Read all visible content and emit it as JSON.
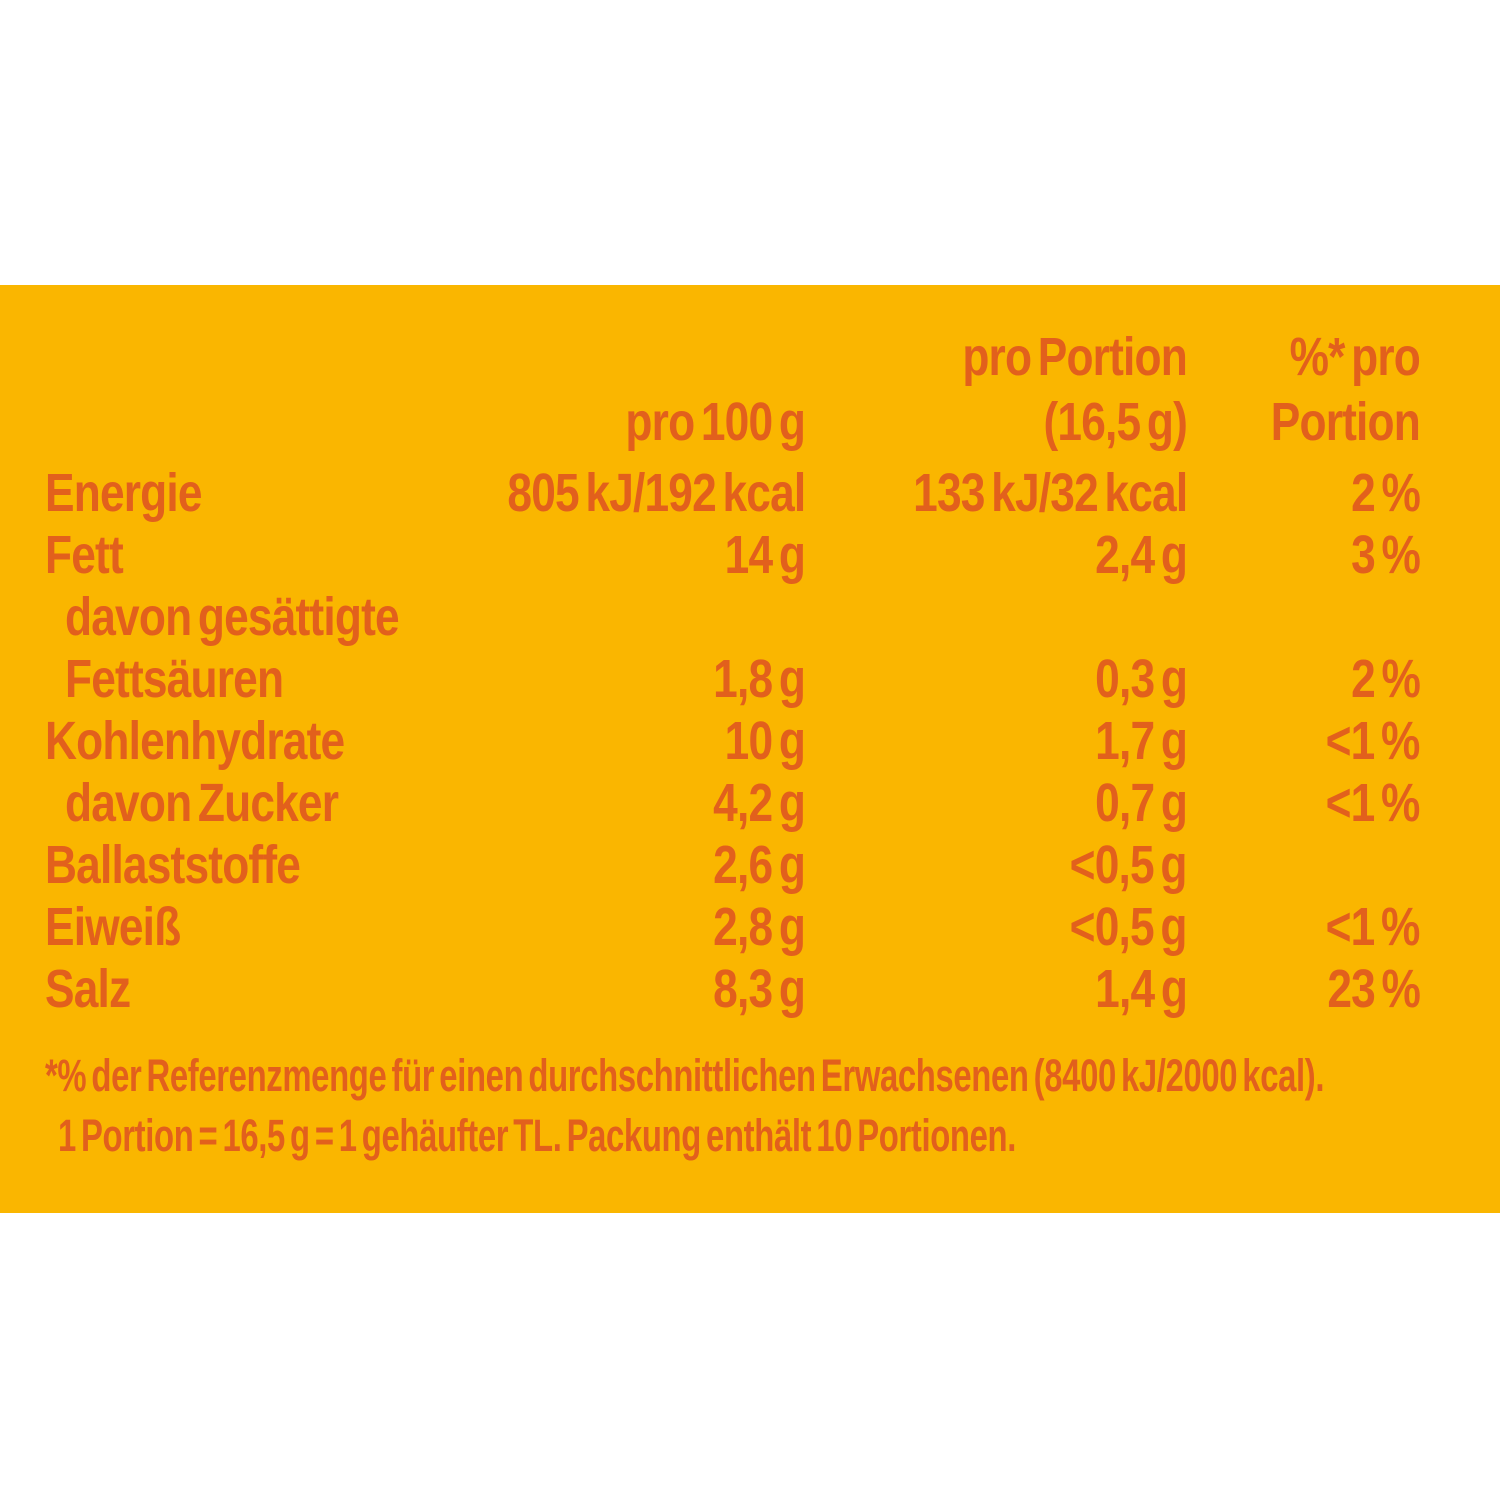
{
  "colors": {
    "page_bg": "#FFFFFF",
    "panel_bg": "#FAB600",
    "text": "#E2601C"
  },
  "table": {
    "header": {
      "col3_line1": "pro Portion",
      "col4_line1": "%* pro",
      "col2_line2": "pro 100 g",
      "col3_line2": "(16,5 g)",
      "col4_line2": "Portion"
    },
    "rows": [
      {
        "label": "Energie",
        "per_100g": "805 kJ/192 kcal",
        "per_portion": "133 kJ/32 kcal",
        "percent": "2 %",
        "indent": false
      },
      {
        "label": "Fett",
        "per_100g": "14 g",
        "per_portion": "2,4 g",
        "percent": "3 %",
        "indent": false
      },
      {
        "label": "davon gesättigte",
        "per_100g": "",
        "per_portion": "",
        "percent": "",
        "indent": true
      },
      {
        "label": "Fettsäuren",
        "per_100g": "1,8 g",
        "per_portion": "0,3 g",
        "percent": "2 %",
        "indent": true
      },
      {
        "label": "Kohlenhydrate",
        "per_100g": "10 g",
        "per_portion": "1,7 g",
        "percent": "<1 %",
        "indent": false
      },
      {
        "label": "davon Zucker",
        "per_100g": "4,2 g",
        "per_portion": "0,7 g",
        "percent": "<1 %",
        "indent": true
      },
      {
        "label": "Ballaststoffe",
        "per_100g": "2,6 g",
        "per_portion": "<0,5 g",
        "percent": "",
        "indent": false
      },
      {
        "label": "Eiweiß",
        "per_100g": "2,8 g",
        "per_portion": "<0,5 g",
        "percent": "<1 %",
        "indent": false
      },
      {
        "label": "Salz",
        "per_100g": "8,3 g",
        "per_portion": "1,4 g",
        "percent": "23 %",
        "indent": false
      }
    ],
    "footnotes": [
      "*% der Referenzmenge für einen durchschnittlichen Erwachsenen (8400 kJ/2000 kcal).",
      "1 Portion = 16,5 g = 1 gehäufter TL. Packung enthält 10 Portionen."
    ]
  }
}
